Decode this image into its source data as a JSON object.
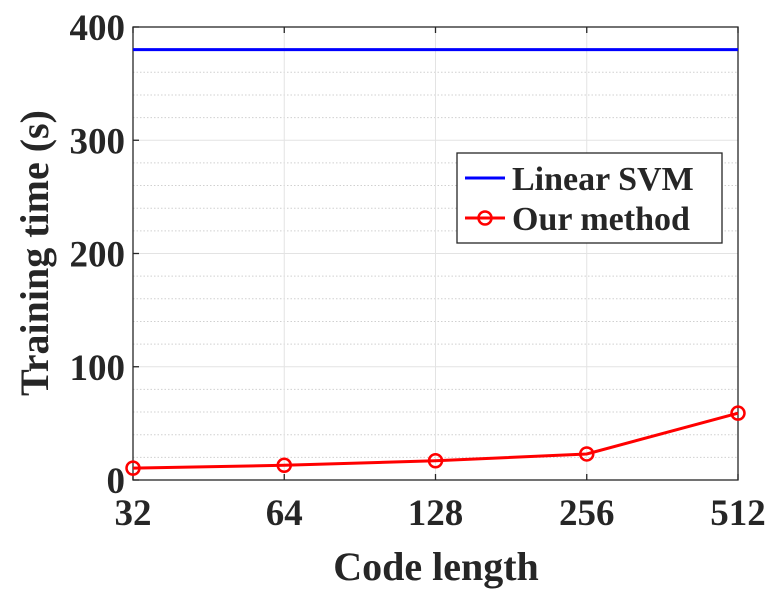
{
  "chart_data": {
    "type": "line",
    "title": "",
    "xlabel": "Code length",
    "ylabel": "Training time (s)",
    "x": [
      32,
      64,
      128,
      256,
      512
    ],
    "x_tick_labels": [
      "32",
      "64",
      "128",
      "256",
      "512"
    ],
    "x_scale": "log2",
    "y_ticks": [
      0,
      100,
      200,
      300,
      400
    ],
    "ylim": [
      0,
      400
    ],
    "grid": true,
    "minor_grid_step": 20,
    "legend_position": "upper-right",
    "series": [
      {
        "name": "Linear SVM",
        "values": [
          380,
          380,
          380,
          380,
          380
        ],
        "color": "#0000ff",
        "marker": "none"
      },
      {
        "name": "Our method",
        "values": [
          10.5,
          13,
          17,
          23,
          59
        ],
        "color": "#ff0000",
        "marker": "circle"
      }
    ]
  }
}
